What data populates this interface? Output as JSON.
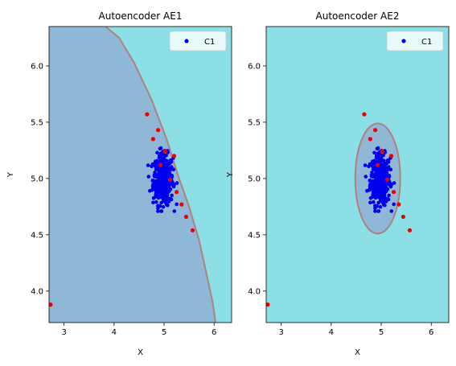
{
  "chart_data": [
    {
      "type": "scatter",
      "title": "Autoencoder AE1",
      "xlabel": "X",
      "ylabel": "Y",
      "xlim": [
        2.7,
        6.35
      ],
      "ylim": [
        3.72,
        6.35
      ],
      "xticks": [
        "3",
        "4",
        "5",
        "6"
      ],
      "yticks": [
        "4.0",
        "4.5",
        "5.0",
        "5.5",
        "6.0"
      ],
      "grid": false,
      "legend": {
        "position": "top-right",
        "entries": [
          "C1"
        ]
      },
      "colors": {
        "inside": "#8eb8d6",
        "outside": "#8bdfe5",
        "boundary": "#b08080",
        "c1": "#0000ee",
        "outliers": "#ee0000"
      },
      "boundary": [
        [
          3.83,
          6.35
        ],
        [
          4.1,
          6.25
        ],
        [
          4.4,
          6.03
        ],
        [
          4.75,
          5.7
        ],
        [
          5.05,
          5.35
        ],
        [
          5.3,
          5.0
        ],
        [
          5.5,
          4.75
        ],
        [
          5.7,
          4.45
        ],
        [
          5.85,
          4.15
        ],
        [
          5.97,
          3.9
        ],
        [
          6.03,
          3.72
        ]
      ],
      "boundary_inside": "left"
    },
    {
      "type": "scatter",
      "title": "Autoencoder AE2",
      "xlabel": "X",
      "ylabel": "Y",
      "xlim": [
        2.7,
        6.35
      ],
      "ylim": [
        3.72,
        6.35
      ],
      "xticks": [
        "3",
        "4",
        "5",
        "6"
      ],
      "yticks": [
        "4.0",
        "4.5",
        "5.0",
        "5.5",
        "6.0"
      ],
      "grid": false,
      "legend": {
        "position": "top-right",
        "entries": [
          "C1"
        ]
      },
      "colors": {
        "inside": "#8eb8d6",
        "outside": "#8bdfe5",
        "boundary": "#b08080",
        "c1": "#0000ee",
        "outliers": "#ee0000"
      },
      "ellipse": {
        "cx": 4.93,
        "cy": 5.0,
        "rx": 0.45,
        "ry": 0.49
      }
    }
  ],
  "series": {
    "c1": {
      "name": "C1",
      "center": [
        4.98,
        4.99
      ],
      "spread": [
        0.1,
        0.11
      ],
      "count": 420
    },
    "outliers": [
      [
        2.73,
        3.88
      ],
      [
        4.66,
        5.57
      ],
      [
        4.78,
        5.35
      ],
      [
        4.88,
        5.43
      ],
      [
        4.93,
        5.12
      ],
      [
        5.02,
        5.24
      ],
      [
        5.12,
        4.99
      ],
      [
        5.2,
        5.2
      ],
      [
        5.25,
        4.88
      ],
      [
        5.35,
        4.77
      ],
      [
        5.44,
        4.66
      ],
      [
        5.57,
        4.54
      ]
    ]
  }
}
